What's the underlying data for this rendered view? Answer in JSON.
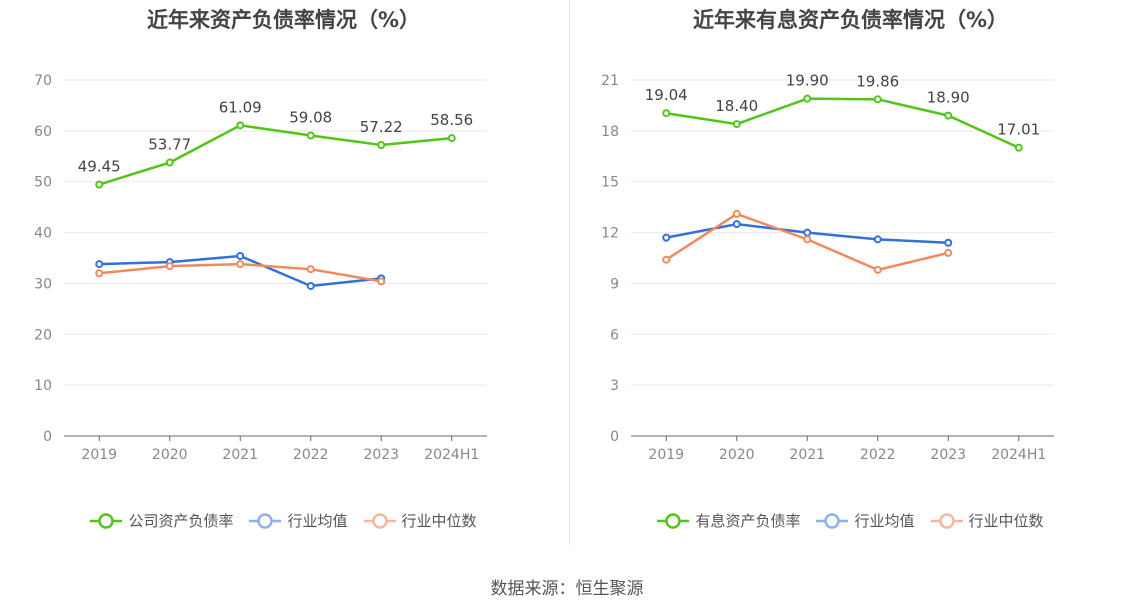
{
  "source_label": "数据来源：恒生聚源",
  "chart_data": [
    {
      "type": "line",
      "title": "近年来资产负债率情况（%）",
      "x": [
        "2019",
        "2020",
        "2021",
        "2022",
        "2023",
        "2024H1"
      ],
      "ylim": [
        0,
        70
      ],
      "yticks": [
        0,
        10,
        20,
        30,
        40,
        50,
        60,
        70
      ],
      "grid": true,
      "legend_position": "bottom",
      "series": [
        {
          "name": "公司资产负债率",
          "color": "#52c41a",
          "values": [
            49.45,
            53.77,
            61.09,
            59.08,
            57.22,
            58.56
          ],
          "labels": [
            "49.45",
            "53.77",
            "61.09",
            "59.08",
            "57.22",
            "58.56"
          ]
        },
        {
          "name": "行业均值",
          "color": "#3370d8",
          "values": [
            33.8,
            34.2,
            35.4,
            29.5,
            31.0,
            null
          ]
        },
        {
          "name": "行业中位数",
          "color": "#f08a5d",
          "values": [
            32.0,
            33.4,
            33.8,
            32.8,
            30.4,
            null
          ]
        }
      ]
    },
    {
      "type": "line",
      "title": "近年来有息资产负债率情况（%）",
      "x": [
        "2019",
        "2020",
        "2021",
        "2022",
        "2023",
        "2024H1"
      ],
      "ylim": [
        0,
        21
      ],
      "yticks": [
        0,
        3,
        6,
        9,
        12,
        15,
        18,
        21
      ],
      "grid": true,
      "legend_position": "bottom",
      "series": [
        {
          "name": "有息资产负债率",
          "color": "#52c41a",
          "values": [
            19.04,
            18.4,
            19.9,
            19.86,
            18.9,
            17.01
          ],
          "labels": [
            "19.04",
            "18.40",
            "19.90",
            "19.86",
            "18.90",
            "17.01"
          ]
        },
        {
          "name": "行业均值",
          "color": "#3370d8",
          "values": [
            11.7,
            12.5,
            12.0,
            11.6,
            11.4,
            null
          ]
        },
        {
          "name": "行业中位数",
          "color": "#f08a5d",
          "values": [
            10.4,
            13.1,
            11.6,
            9.8,
            10.8,
            null
          ]
        }
      ]
    }
  ]
}
